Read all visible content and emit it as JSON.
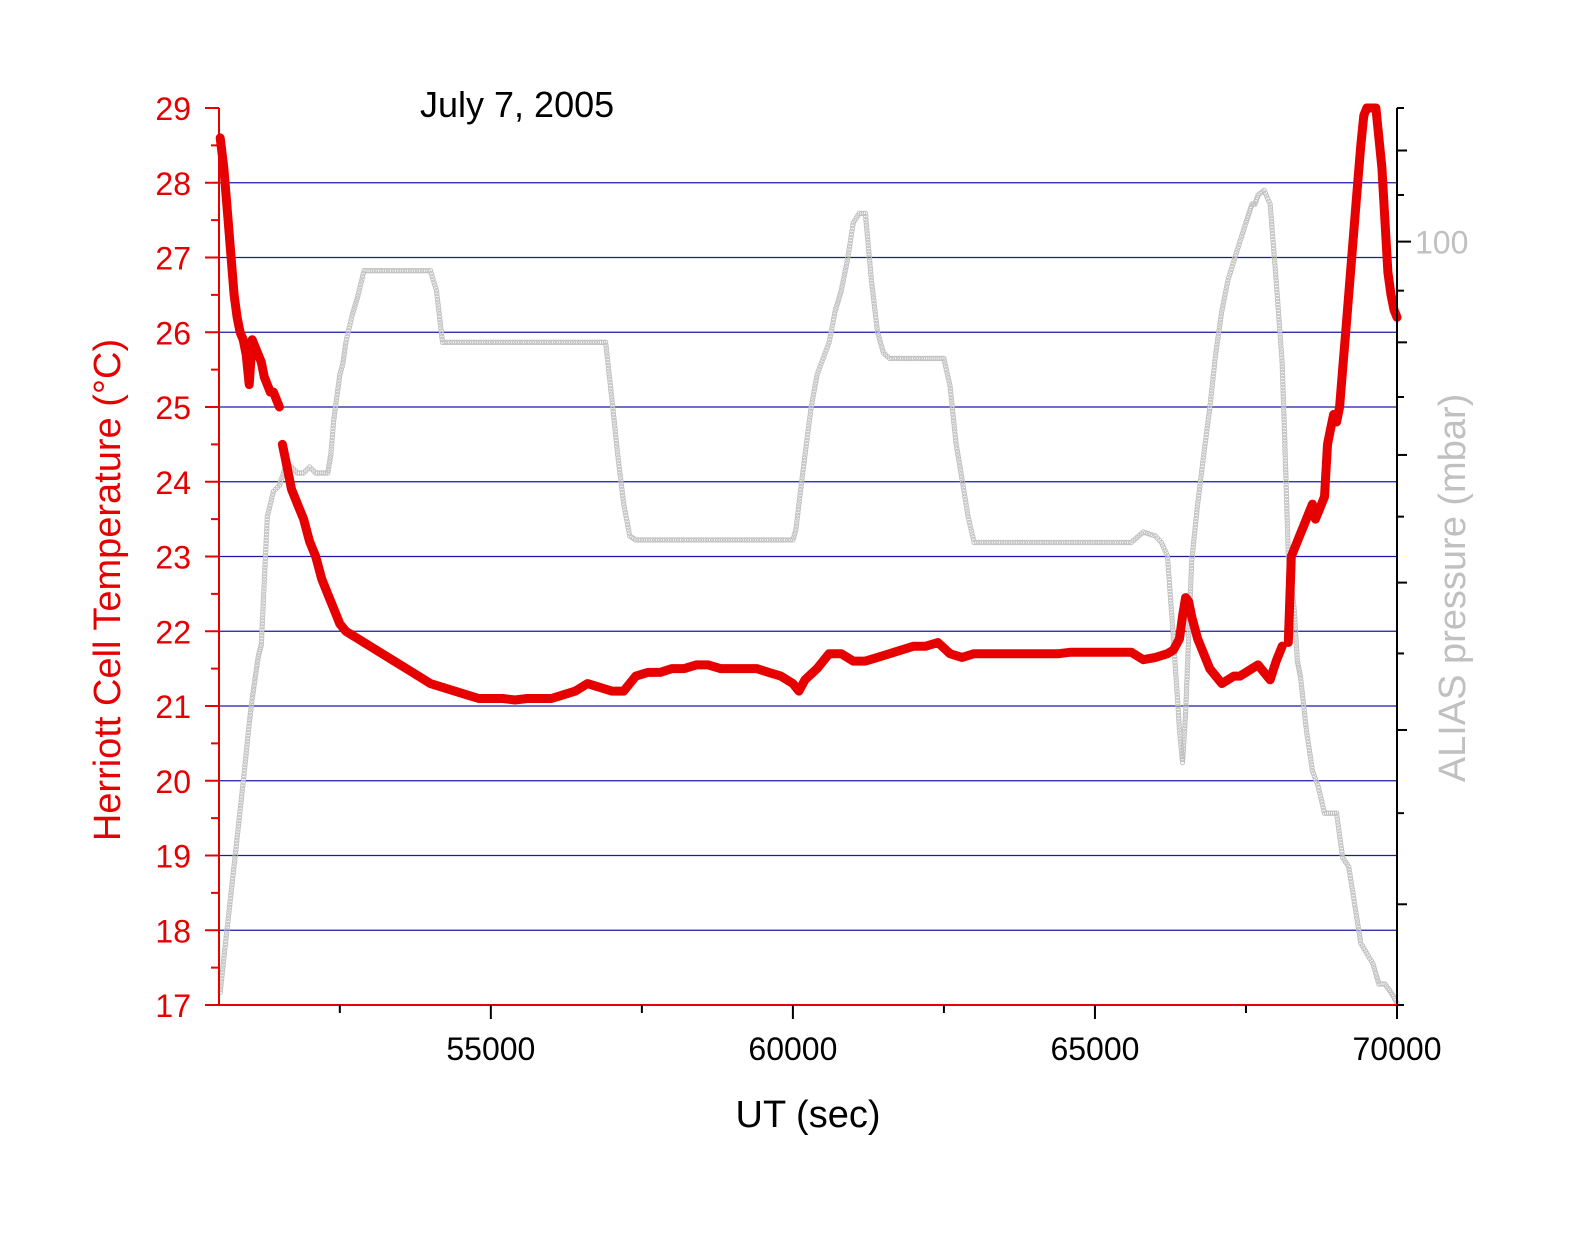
{
  "chart_data": {
    "type": "line",
    "title": "July 7, 2005",
    "xlabel": "UT (sec)",
    "ylabel": "Herriott Cell Temperature (°C)",
    "y2label": "ALIAS pressure (mbar)",
    "xlim": [
      50500,
      70000
    ],
    "ylim": [
      17,
      29
    ],
    "y2scale": "log",
    "y2lim": [
      45,
      115
    ],
    "x_ticks": [
      55000,
      60000,
      65000,
      70000
    ],
    "y_ticks": [
      17,
      18,
      19,
      20,
      21,
      22,
      23,
      24,
      25,
      26,
      27,
      28,
      29
    ],
    "y2_tick_labels": [
      {
        "value": 100,
        "label": "100"
      }
    ],
    "grid": "horizontal",
    "colors": {
      "temperature": "#e60000",
      "pressure": "#c0c0c0",
      "grid": "#1a1aa8",
      "left_axis": "#e60000",
      "right_axis": "#000000",
      "right_label": "#c0c0c0"
    },
    "series": [
      {
        "name": "Herriott Cell Temperature",
        "axis": "left",
        "x": [
          50520,
          50580,
          50650,
          50700,
          50750,
          50800,
          50850,
          50900,
          50950,
          51000,
          51050,
          51100,
          51150,
          51200,
          51250,
          51300,
          51350,
          51400,
          51450,
          51500,
          51550,
          51600,
          51650,
          51700,
          51750,
          51800,
          51900,
          52000,
          52100,
          52200,
          52300,
          52400,
          52500,
          52600,
          52700,
          52800,
          52900,
          53000,
          53200,
          53400,
          53600,
          53800,
          54000,
          54200,
          54400,
          54600,
          54800,
          55000,
          55200,
          55400,
          55600,
          55800,
          56000,
          56200,
          56400,
          56600,
          56800,
          57000,
          57200,
          57400,
          57600,
          57800,
          58000,
          58200,
          58400,
          58600,
          58800,
          59000,
          59200,
          59400,
          59600,
          59800,
          60000,
          60100,
          60200,
          60400,
          60600,
          60800,
          61000,
          61200,
          61400,
          61600,
          61800,
          62000,
          62200,
          62400,
          62600,
          62800,
          63000,
          63200,
          63400,
          63600,
          63800,
          64000,
          64200,
          64400,
          64600,
          64800,
          65000,
          65200,
          65400,
          65600,
          65800,
          66000,
          66200,
          66300,
          66400,
          66450,
          66500,
          66550,
          66600,
          66700,
          66800,
          66900,
          67000,
          67100,
          67200,
          67300,
          67400,
          67500,
          67600,
          67700,
          67800,
          67900,
          68000,
          68100,
          68200,
          68250,
          68300,
          68350,
          68400,
          68450,
          68500,
          68550,
          68600,
          68650,
          68700,
          68750,
          68800,
          68850,
          68900,
          68950,
          69000,
          69050,
          69100,
          69150,
          69200,
          69250,
          69300,
          69350,
          69400,
          69450,
          69500,
          69550,
          69600,
          69650,
          69700,
          69750,
          69800,
          69850,
          69900,
          69950,
          70000
        ],
        "values": [
          28.6,
          28.2,
          27.5,
          27.0,
          26.5,
          26.2,
          26.0,
          25.9,
          25.7,
          25.3,
          25.9,
          25.8,
          25.7,
          25.6,
          25.4,
          25.3,
          25.2,
          25.2,
          25.1,
          25.0,
          24.5,
          24.3,
          24.1,
          23.9,
          23.8,
          23.7,
          23.5,
          23.2,
          23.0,
          22.7,
          22.5,
          22.3,
          22.1,
          22.0,
          21.95,
          21.9,
          21.85,
          21.8,
          21.7,
          21.6,
          21.5,
          21.4,
          21.3,
          21.25,
          21.2,
          21.15,
          21.1,
          21.1,
          21.1,
          21.08,
          21.1,
          21.1,
          21.1,
          21.15,
          21.2,
          21.3,
          21.25,
          21.2,
          21.2,
          21.4,
          21.45,
          21.45,
          21.5,
          21.5,
          21.55,
          21.55,
          21.5,
          21.5,
          21.5,
          21.5,
          21.45,
          21.4,
          21.3,
          21.2,
          21.35,
          21.5,
          21.7,
          21.7,
          21.6,
          21.6,
          21.65,
          21.7,
          21.75,
          21.8,
          21.8,
          21.85,
          21.7,
          21.65,
          21.7,
          21.7,
          21.7,
          21.7,
          21.7,
          21.7,
          21.7,
          21.7,
          21.72,
          21.72,
          21.72,
          21.72,
          21.72,
          21.72,
          21.62,
          21.65,
          21.7,
          21.75,
          21.9,
          22.2,
          22.45,
          22.4,
          22.2,
          21.9,
          21.7,
          21.5,
          21.4,
          21.3,
          21.35,
          21.4,
          21.4,
          21.45,
          21.5,
          21.55,
          21.45,
          21.35,
          21.6,
          21.8,
          21.85,
          23.0,
          23.1,
          23.2,
          23.3,
          23.4,
          23.5,
          23.6,
          23.7,
          23.5,
          23.6,
          23.7,
          23.8,
          24.5,
          24.7,
          24.9,
          24.8,
          25.0,
          25.5,
          26.0,
          26.5,
          27.0,
          27.5,
          28.0,
          28.5,
          28.9,
          29.0,
          29.0,
          29.0,
          29.0,
          28.6,
          28.2,
          27.5,
          26.8,
          26.5,
          26.3,
          26.2
        ]
      },
      {
        "name": "ALIAS pressure",
        "axis": "right",
        "x": [
          50520,
          50600,
          50700,
          50800,
          50900,
          51000,
          51050,
          51100,
          51150,
          51200,
          51300,
          51400,
          51500,
          51600,
          51700,
          51800,
          51900,
          52000,
          52100,
          52200,
          52300,
          52350,
          52400,
          52500,
          52550,
          52600,
          52700,
          52800,
          52900,
          53000,
          53200,
          53400,
          53600,
          53800,
          54000,
          54100,
          54200,
          54400,
          54600,
          54800,
          55000,
          55200,
          55400,
          55600,
          55800,
          56000,
          56200,
          56400,
          56600,
          56800,
          56900,
          57000,
          57100,
          57200,
          57300,
          57400,
          57600,
          57800,
          58000,
          58200,
          58400,
          58600,
          58800,
          59000,
          59200,
          59400,
          59600,
          59800,
          60000,
          60050,
          60100,
          60200,
          60300,
          60400,
          60500,
          60600,
          60700,
          60800,
          60900,
          61000,
          61100,
          61200,
          61300,
          61400,
          61500,
          61600,
          61800,
          62000,
          62200,
          62300,
          62400,
          62500,
          62600,
          62700,
          62800,
          62900,
          63000,
          63200,
          63400,
          63600,
          63800,
          64000,
          64200,
          64400,
          64600,
          64800,
          65000,
          65200,
          65400,
          65600,
          65800,
          66000,
          66100,
          66200,
          66300,
          66400,
          66450,
          66500,
          66550,
          66600,
          66700,
          66800,
          66900,
          67000,
          67100,
          67200,
          67300,
          67400,
          67500,
          67550,
          67600,
          67650,
          67700,
          67800,
          67900,
          68000,
          68100,
          68150,
          68200,
          68300,
          68350,
          68400,
          68500,
          68600,
          68700,
          68800,
          68900,
          69000,
          69100,
          69200,
          69300,
          69400,
          69500,
          69600,
          69700,
          69800,
          69900,
          70000
        ],
        "values": [
          45.6,
          47.8,
          50.6,
          53.6,
          56.8,
          60.4,
          62.0,
          63.4,
          64.8,
          65.6,
          75.0,
          77.0,
          77.5,
          79.0,
          79.0,
          78.5,
          78.5,
          79.0,
          78.5,
          78.5,
          78.5,
          80.0,
          83.0,
          87.0,
          88.0,
          90.0,
          92.5,
          94.5,
          97.0,
          97.0,
          97.0,
          97.0,
          97.0,
          97.0,
          97.0,
          95.0,
          90.0,
          90.0,
          90.0,
          90.0,
          90.0,
          90.0,
          90.0,
          90.0,
          90.0,
          90.0,
          90.0,
          90.0,
          90.0,
          90.0,
          90.0,
          85.0,
          80.0,
          76.0,
          73.5,
          73.2,
          73.2,
          73.2,
          73.2,
          73.2,
          73.2,
          73.2,
          73.2,
          73.2,
          73.2,
          73.2,
          73.2,
          73.2,
          73.2,
          74.0,
          76.0,
          80.0,
          84.0,
          87.0,
          88.5,
          90.0,
          93.0,
          95.0,
          98.0,
          102.0,
          103.0,
          103.0,
          96.0,
          91.0,
          89.0,
          88.5,
          88.5,
          88.5,
          88.5,
          88.5,
          88.5,
          88.5,
          86.0,
          81.0,
          78.0,
          75.0,
          73.0,
          73.0,
          73.0,
          73.0,
          73.0,
          73.0,
          73.0,
          73.0,
          73.0,
          73.0,
          73.0,
          73.0,
          73.0,
          73.0,
          73.8,
          73.5,
          73.0,
          72.0,
          66.0,
          60.0,
          58.0,
          61.0,
          66.0,
          71.5,
          76.0,
          80.0,
          84.0,
          89.0,
          93.0,
          96.0,
          98.0,
          100.0,
          102.0,
          103.0,
          104.0,
          104.0,
          105.0,
          105.5,
          104.0,
          96.0,
          88.0,
          80.0,
          72.0,
          68.0,
          64.5,
          63.5,
          60.0,
          57.5,
          56.5,
          55.0,
          55.0,
          55.0,
          52.5,
          52.0,
          50.0,
          48.0,
          47.5,
          47.0,
          46.0,
          46.0,
          45.6,
          45.1
        ]
      }
    ]
  }
}
